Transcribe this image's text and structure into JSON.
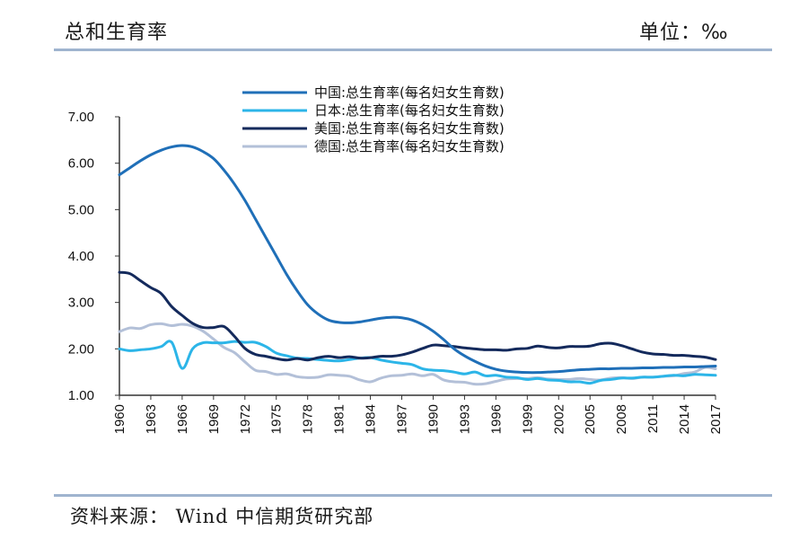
{
  "header": {
    "title": "总和生育率",
    "unit": "单位：‰"
  },
  "footer": {
    "source": "资料来源： Wind 中信期货研究部"
  },
  "colors": {
    "china": "#1f6fb8",
    "japan": "#2cb5e8",
    "usa": "#142a5c",
    "germany": "#b3c0d8",
    "axis": "#333333",
    "rule": "#9fb4cf"
  },
  "chart_data": {
    "type": "line",
    "title": "",
    "xlabel": "",
    "ylabel": "",
    "xlim": [
      1960,
      2017
    ],
    "ylim": [
      1.0,
      7.0
    ],
    "yticks": [
      "1.00",
      "2.00",
      "3.00",
      "4.00",
      "5.00",
      "6.00",
      "7.00"
    ],
    "xticks": [
      "1960",
      "1963",
      "1966",
      "1969",
      "1972",
      "1975",
      "1978",
      "1981",
      "1984",
      "1987",
      "1990",
      "1993",
      "1996",
      "1999",
      "2002",
      "2005",
      "2008",
      "2011",
      "2014",
      "2017"
    ],
    "grid": false,
    "legend_position": "top-center",
    "series": [
      {
        "name": "中国:总生育率(每名妇女生育数)",
        "color_key": "china",
        "x": [
          1960,
          1961,
          1962,
          1963,
          1964,
          1965,
          1966,
          1967,
          1968,
          1969,
          1970,
          1971,
          1972,
          1973,
          1974,
          1975,
          1976,
          1977,
          1978,
          1979,
          1980,
          1981,
          1982,
          1983,
          1984,
          1985,
          1986,
          1987,
          1988,
          1989,
          1990,
          1991,
          1992,
          1993,
          1994,
          1995,
          1996,
          1997,
          1998,
          1999,
          2000,
          2001,
          2002,
          2003,
          2004,
          2005,
          2006,
          2007,
          2008,
          2009,
          2010,
          2011,
          2012,
          2013,
          2014,
          2015,
          2016,
          2017
        ],
        "y": [
          5.75,
          5.9,
          6.05,
          6.18,
          6.28,
          6.35,
          6.38,
          6.35,
          6.25,
          6.1,
          5.85,
          5.55,
          5.2,
          4.8,
          4.4,
          4.0,
          3.6,
          3.25,
          2.95,
          2.75,
          2.62,
          2.57,
          2.56,
          2.58,
          2.62,
          2.66,
          2.68,
          2.67,
          2.62,
          2.52,
          2.38,
          2.2,
          2.0,
          1.85,
          1.73,
          1.63,
          1.56,
          1.52,
          1.5,
          1.49,
          1.49,
          1.5,
          1.51,
          1.53,
          1.55,
          1.56,
          1.57,
          1.57,
          1.58,
          1.58,
          1.59,
          1.59,
          1.6,
          1.6,
          1.61,
          1.61,
          1.62,
          1.63
        ]
      },
      {
        "name": "日本:总生育率(每名妇女生育数)",
        "color_key": "japan",
        "x": [
          1960,
          1961,
          1962,
          1963,
          1964,
          1965,
          1966,
          1967,
          1968,
          1969,
          1970,
          1971,
          1972,
          1973,
          1974,
          1975,
          1976,
          1977,
          1978,
          1979,
          1980,
          1981,
          1982,
          1983,
          1984,
          1985,
          1986,
          1987,
          1988,
          1989,
          1990,
          1991,
          1992,
          1993,
          1994,
          1995,
          1996,
          1997,
          1998,
          1999,
          2000,
          2001,
          2002,
          2003,
          2004,
          2005,
          2006,
          2007,
          2008,
          2009,
          2010,
          2011,
          2012,
          2013,
          2014,
          2015,
          2016,
          2017
        ],
        "y": [
          2.0,
          1.96,
          1.98,
          2.0,
          2.05,
          2.14,
          1.58,
          2.0,
          2.13,
          2.13,
          2.13,
          2.16,
          2.14,
          2.14,
          2.05,
          1.91,
          1.85,
          1.8,
          1.79,
          1.77,
          1.75,
          1.74,
          1.77,
          1.8,
          1.81,
          1.76,
          1.72,
          1.69,
          1.66,
          1.57,
          1.54,
          1.53,
          1.5,
          1.46,
          1.5,
          1.42,
          1.43,
          1.39,
          1.38,
          1.34,
          1.36,
          1.33,
          1.32,
          1.29,
          1.29,
          1.26,
          1.32,
          1.34,
          1.37,
          1.37,
          1.39,
          1.39,
          1.41,
          1.43,
          1.42,
          1.45,
          1.44,
          1.43
        ]
      },
      {
        "name": "美国:总生育率(每名妇女生育数)",
        "color_key": "usa",
        "x": [
          1960,
          1961,
          1962,
          1963,
          1964,
          1965,
          1966,
          1967,
          1968,
          1969,
          1970,
          1971,
          1972,
          1973,
          1974,
          1975,
          1976,
          1977,
          1978,
          1979,
          1980,
          1981,
          1982,
          1983,
          1984,
          1985,
          1986,
          1987,
          1988,
          1989,
          1990,
          1991,
          1992,
          1993,
          1994,
          1995,
          1996,
          1997,
          1998,
          1999,
          2000,
          2001,
          2002,
          2003,
          2004,
          2005,
          2006,
          2007,
          2008,
          2009,
          2010,
          2011,
          2012,
          2013,
          2014,
          2015,
          2016,
          2017
        ],
        "y": [
          3.65,
          3.62,
          3.47,
          3.32,
          3.19,
          2.91,
          2.72,
          2.55,
          2.46,
          2.46,
          2.48,
          2.27,
          2.01,
          1.88,
          1.84,
          1.79,
          1.76,
          1.79,
          1.76,
          1.81,
          1.84,
          1.81,
          1.83,
          1.8,
          1.81,
          1.84,
          1.84,
          1.87,
          1.93,
          2.01,
          2.08,
          2.07,
          2.05,
          2.02,
          2.0,
          1.98,
          1.98,
          1.97,
          2.0,
          2.01,
          2.06,
          2.03,
          2.02,
          2.05,
          2.05,
          2.06,
          2.11,
          2.12,
          2.07,
          2.0,
          1.93,
          1.89,
          1.88,
          1.86,
          1.86,
          1.84,
          1.82,
          1.77
        ]
      },
      {
        "name": "德国:总生育率(每名妇女生育数)",
        "color_key": "germany",
        "x": [
          1960,
          1961,
          1962,
          1963,
          1964,
          1965,
          1966,
          1967,
          1968,
          1969,
          1970,
          1971,
          1972,
          1973,
          1974,
          1975,
          1976,
          1977,
          1978,
          1979,
          1980,
          1981,
          1982,
          1983,
          1984,
          1985,
          1986,
          1987,
          1988,
          1989,
          1990,
          1991,
          1992,
          1993,
          1994,
          1995,
          1996,
          1997,
          1998,
          1999,
          2000,
          2001,
          2002,
          2003,
          2004,
          2005,
          2006,
          2007,
          2008,
          2009,
          2010,
          2011,
          2012,
          2013,
          2014,
          2015,
          2016,
          2017
        ],
        "y": [
          2.37,
          2.45,
          2.44,
          2.52,
          2.54,
          2.5,
          2.53,
          2.49,
          2.38,
          2.21,
          2.03,
          1.92,
          1.72,
          1.54,
          1.51,
          1.45,
          1.46,
          1.4,
          1.38,
          1.39,
          1.44,
          1.43,
          1.41,
          1.33,
          1.29,
          1.37,
          1.42,
          1.43,
          1.46,
          1.42,
          1.45,
          1.33,
          1.29,
          1.28,
          1.24,
          1.25,
          1.3,
          1.35,
          1.36,
          1.36,
          1.38,
          1.35,
          1.34,
          1.34,
          1.36,
          1.34,
          1.33,
          1.37,
          1.38,
          1.36,
          1.39,
          1.39,
          1.41,
          1.42,
          1.47,
          1.5,
          1.6,
          1.57
        ]
      }
    ]
  }
}
